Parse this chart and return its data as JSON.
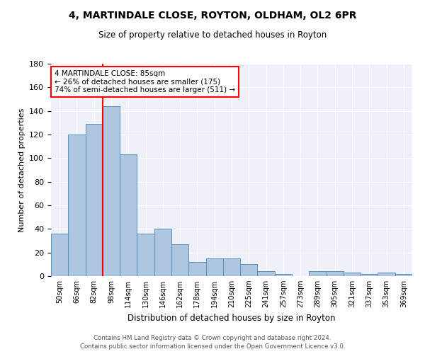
{
  "title1": "4, MARTINDALE CLOSE, ROYTON, OLDHAM, OL2 6PR",
  "title2": "Size of property relative to detached houses in Royton",
  "xlabel": "Distribution of detached houses by size in Royton",
  "ylabel": "Number of detached properties",
  "categories": [
    "50sqm",
    "66sqm",
    "82sqm",
    "98sqm",
    "114sqm",
    "130sqm",
    "146sqm",
    "162sqm",
    "178sqm",
    "194sqm",
    "210sqm",
    "225sqm",
    "241sqm",
    "257sqm",
    "273sqm",
    "289sqm",
    "305sqm",
    "321sqm",
    "337sqm",
    "353sqm",
    "369sqm"
  ],
  "values": [
    36,
    120,
    129,
    144,
    103,
    36,
    40,
    27,
    12,
    15,
    15,
    10,
    4,
    2,
    0,
    4,
    4,
    3,
    2,
    3,
    2
  ],
  "bar_color": "#aec6e0",
  "bar_edge_color": "#5b8fbe",
  "red_line_x": 2.5,
  "annotation_line1": "4 MARTINDALE CLOSE: 85sqm",
  "annotation_line2": "← 26% of detached houses are smaller (175)",
  "annotation_line3": "74% of semi-detached houses are larger (511) →",
  "ylim": [
    0,
    180
  ],
  "yticks": [
    0,
    20,
    40,
    60,
    80,
    100,
    120,
    140,
    160,
    180
  ],
  "footer1": "Contains HM Land Registry data © Crown copyright and database right 2024.",
  "footer2": "Contains public sector information licensed under the Open Government Licence v3.0.",
  "bg_color": "#eef2f8"
}
